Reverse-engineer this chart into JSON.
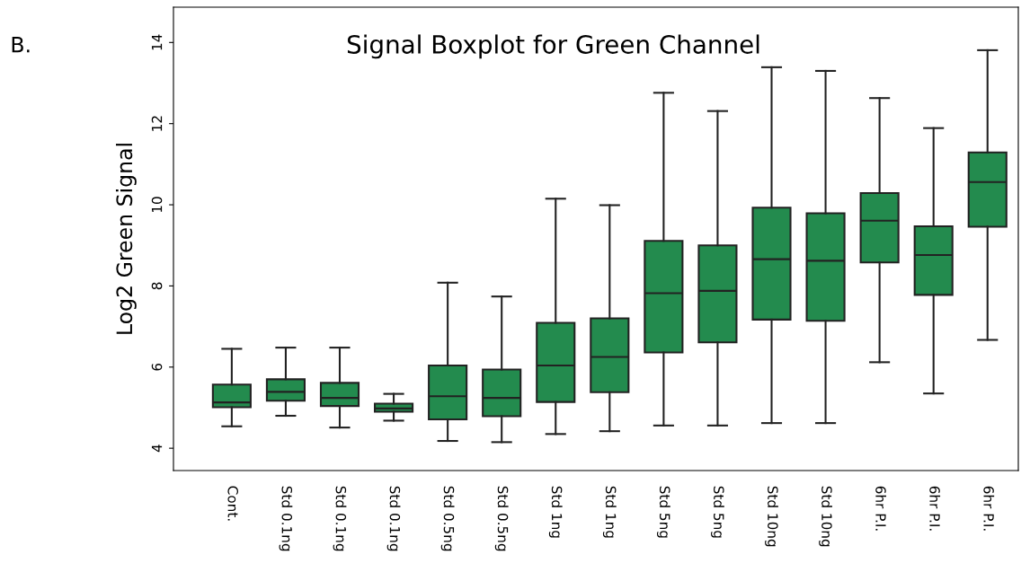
{
  "chart_data": {
    "type": "box",
    "title": "Signal Boxplot for Green Channel",
    "ylabel": "Log2 Green Signal",
    "annotations": [
      "B."
    ],
    "categories": [
      "Cont.",
      "Std 0.1ng",
      "Std 0.1ng",
      "Std 0.1ng",
      "Std 0.5ng",
      "Std 0.5ng",
      "Std 1ng",
      "Std 1ng",
      "Std 5ng",
      "Std 5ng",
      "Std 10ng",
      "Std 10ng",
      "6hr P.I.",
      "6hr P.I.",
      "6hr P.I."
    ],
    "color": "#238b4e",
    "boxes": [
      {
        "low": 4.54,
        "q1": 5.01,
        "median": 5.13,
        "q3": 5.57,
        "high": 6.45
      },
      {
        "low": 4.8,
        "q1": 5.17,
        "median": 5.39,
        "q3": 5.7,
        "high": 6.48
      },
      {
        "low": 4.51,
        "q1": 5.04,
        "median": 5.24,
        "q3": 5.61,
        "high": 6.48
      },
      {
        "low": 4.68,
        "q1": 4.9,
        "median": 4.98,
        "q3": 5.1,
        "high": 5.34
      },
      {
        "low": 4.18,
        "q1": 4.71,
        "median": 5.28,
        "q3": 6.04,
        "high": 8.08
      },
      {
        "low": 4.15,
        "q1": 4.79,
        "median": 5.24,
        "q3": 5.94,
        "high": 7.74
      },
      {
        "low": 4.35,
        "q1": 5.14,
        "median": 6.04,
        "q3": 7.09,
        "high": 10.15
      },
      {
        "low": 4.42,
        "q1": 5.38,
        "median": 6.25,
        "q3": 7.2,
        "high": 9.99
      },
      {
        "low": 4.56,
        "q1": 6.36,
        "median": 7.82,
        "q3": 9.11,
        "high": 12.76
      },
      {
        "low": 4.56,
        "q1": 6.61,
        "median": 7.88,
        "q3": 9.0,
        "high": 12.31
      },
      {
        "low": 4.62,
        "q1": 7.17,
        "median": 8.66,
        "q3": 9.93,
        "high": 13.39
      },
      {
        "low": 4.62,
        "q1": 7.14,
        "median": 8.62,
        "q3": 9.79,
        "high": 13.3
      },
      {
        "low": 6.12,
        "q1": 8.58,
        "median": 9.61,
        "q3": 10.29,
        "high": 12.63
      },
      {
        "low": 5.35,
        "q1": 7.78,
        "median": 8.76,
        "q3": 9.47,
        "high": 11.89
      },
      {
        "low": 6.67,
        "q1": 9.46,
        "median": 10.56,
        "q3": 11.29,
        "high": 13.81
      }
    ],
    "ylim": [
      3.45,
      14.87
    ],
    "yticks": [
      4,
      6,
      8,
      10,
      12,
      14
    ],
    "grid": false
  }
}
